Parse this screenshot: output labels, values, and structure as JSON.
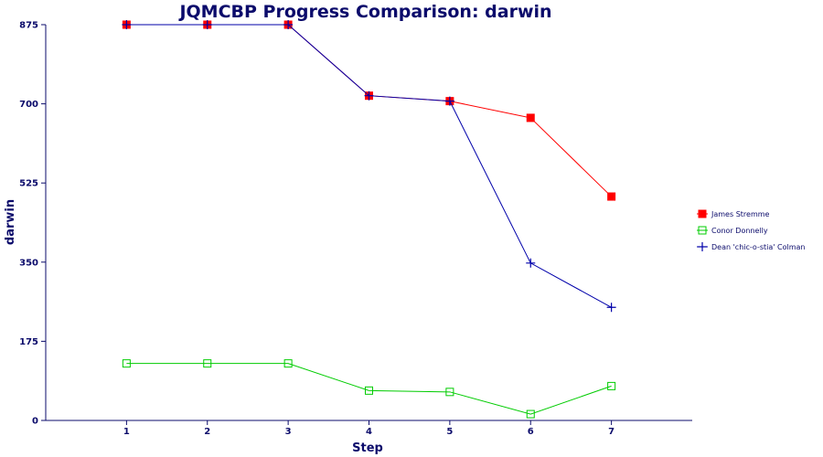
{
  "chart_data": {
    "type": "line",
    "title": "JQMCBP Progress Comparison: darwin",
    "xlabel": "Step",
    "ylabel": "darwin",
    "x": [
      1,
      2,
      3,
      4,
      5,
      6,
      7
    ],
    "xlim": [
      0,
      8
    ],
    "ylim": [
      0,
      875
    ],
    "yticks": [
      0,
      175,
      350,
      525,
      700,
      875
    ],
    "grid": false,
    "legend_position": "right",
    "series": [
      {
        "name": "James Stremme",
        "color": "#ff0000",
        "marker": "filled-square",
        "values": [
          875,
          875,
          875,
          718,
          706,
          669,
          495
        ]
      },
      {
        "name": "Conor Donnelly",
        "color": "#00cc00",
        "marker": "open-square",
        "values": [
          126,
          126,
          126,
          66,
          63,
          14,
          76
        ]
      },
      {
        "name": "Dean 'chic-o-stia' Colman",
        "color": "#0000aa",
        "marker": "plus",
        "values": [
          875,
          875,
          875,
          718,
          706,
          348,
          250
        ]
      }
    ]
  }
}
